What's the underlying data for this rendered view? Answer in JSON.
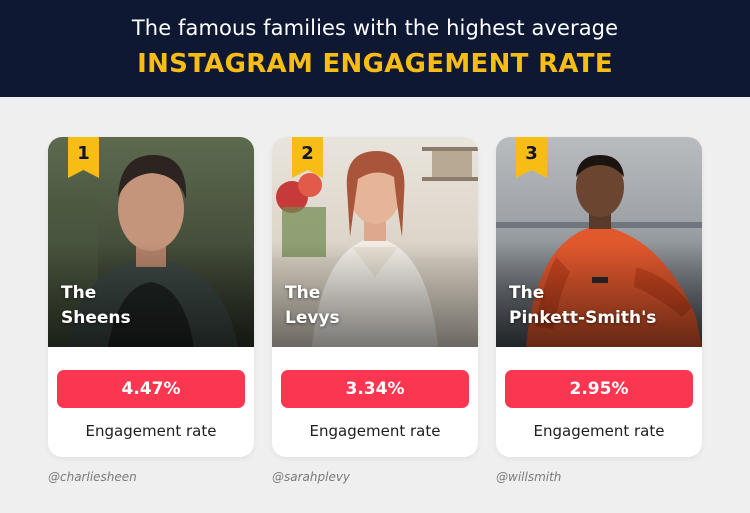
{
  "header": {
    "subtitle": "The famous families with the highest average",
    "title": "INSTAGRAM ENGAGEMENT RATE"
  },
  "colors": {
    "header_bg": "#0e1833",
    "accent_yellow": "#f7bd15",
    "rate_red": "#fa3650",
    "background": "#efefef"
  },
  "families": [
    {
      "rank": "1",
      "name_line1": "The",
      "name_line2": "Sheens",
      "rate": "4.47%",
      "rate_label": "Engagement rate",
      "handle": "@charliesheen"
    },
    {
      "rank": "2",
      "name_line1": "The",
      "name_line2": "Levys",
      "rate": "3.34%",
      "rate_label": "Engagement rate",
      "handle": "@sarahplevy"
    },
    {
      "rank": "3",
      "name_line1": "The",
      "name_line2": "Pinkett-Smith's",
      "rate": "2.95%",
      "rate_label": "Engagement rate",
      "handle": "@willsmith"
    }
  ]
}
